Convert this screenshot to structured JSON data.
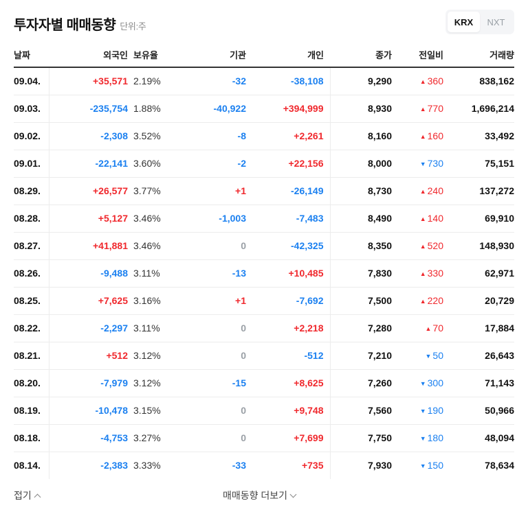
{
  "header": {
    "title": "투자자별 매매동향",
    "unit": "단위:주",
    "market_tabs": [
      {
        "label": "KRX",
        "active": true
      },
      {
        "label": "NXT",
        "active": false
      }
    ]
  },
  "table": {
    "columns": [
      "날짜",
      "외국인",
      "보유율",
      "기관",
      "개인",
      "종가",
      "전일비",
      "거래량"
    ],
    "rows": [
      {
        "date": "09.04.",
        "foreign": "+35,571",
        "foreign_dir": "up",
        "holding": "2.19%",
        "inst": "-32",
        "inst_dir": "down",
        "indiv": "-38,108",
        "indiv_dir": "down",
        "close": "9,290",
        "change": "360",
        "change_dir": "up",
        "volume": "838,162"
      },
      {
        "date": "09.03.",
        "foreign": "-235,754",
        "foreign_dir": "down",
        "holding": "1.88%",
        "inst": "-40,922",
        "inst_dir": "down",
        "indiv": "+394,999",
        "indiv_dir": "up",
        "close": "8,930",
        "change": "770",
        "change_dir": "up",
        "volume": "1,696,214"
      },
      {
        "date": "09.02.",
        "foreign": "-2,308",
        "foreign_dir": "down",
        "holding": "3.52%",
        "inst": "-8",
        "inst_dir": "down",
        "indiv": "+2,261",
        "indiv_dir": "up",
        "close": "8,160",
        "change": "160",
        "change_dir": "up",
        "volume": "33,492"
      },
      {
        "date": "09.01.",
        "foreign": "-22,141",
        "foreign_dir": "down",
        "holding": "3.60%",
        "inst": "-2",
        "inst_dir": "down",
        "indiv": "+22,156",
        "indiv_dir": "up",
        "close": "8,000",
        "change": "730",
        "change_dir": "down",
        "volume": "75,151"
      },
      {
        "date": "08.29.",
        "foreign": "+26,577",
        "foreign_dir": "up",
        "holding": "3.77%",
        "inst": "+1",
        "inst_dir": "up",
        "indiv": "-26,149",
        "indiv_dir": "down",
        "close": "8,730",
        "change": "240",
        "change_dir": "up",
        "volume": "137,272"
      },
      {
        "date": "08.28.",
        "foreign": "+5,127",
        "foreign_dir": "up",
        "holding": "3.46%",
        "inst": "-1,003",
        "inst_dir": "down",
        "indiv": "-7,483",
        "indiv_dir": "down",
        "close": "8,490",
        "change": "140",
        "change_dir": "up",
        "volume": "69,910"
      },
      {
        "date": "08.27.",
        "foreign": "+41,881",
        "foreign_dir": "up",
        "holding": "3.46%",
        "inst": "0",
        "inst_dir": "zero",
        "indiv": "-42,325",
        "indiv_dir": "down",
        "close": "8,350",
        "change": "520",
        "change_dir": "up",
        "volume": "148,930"
      },
      {
        "date": "08.26.",
        "foreign": "-9,488",
        "foreign_dir": "down",
        "holding": "3.11%",
        "inst": "-13",
        "inst_dir": "down",
        "indiv": "+10,485",
        "indiv_dir": "up",
        "close": "7,830",
        "change": "330",
        "change_dir": "up",
        "volume": "62,971"
      },
      {
        "date": "08.25.",
        "foreign": "+7,625",
        "foreign_dir": "up",
        "holding": "3.16%",
        "inst": "+1",
        "inst_dir": "up",
        "indiv": "-7,692",
        "indiv_dir": "down",
        "close": "7,500",
        "change": "220",
        "change_dir": "up",
        "volume": "20,729"
      },
      {
        "date": "08.22.",
        "foreign": "-2,297",
        "foreign_dir": "down",
        "holding": "3.11%",
        "inst": "0",
        "inst_dir": "zero",
        "indiv": "+2,218",
        "indiv_dir": "up",
        "close": "7,280",
        "change": "70",
        "change_dir": "up",
        "volume": "17,884"
      },
      {
        "date": "08.21.",
        "foreign": "+512",
        "foreign_dir": "up",
        "holding": "3.12%",
        "inst": "0",
        "inst_dir": "zero",
        "indiv": "-512",
        "indiv_dir": "down",
        "close": "7,210",
        "change": "50",
        "change_dir": "down",
        "volume": "26,643"
      },
      {
        "date": "08.20.",
        "foreign": "-7,979",
        "foreign_dir": "down",
        "holding": "3.12%",
        "inst": "-15",
        "inst_dir": "down",
        "indiv": "+8,625",
        "indiv_dir": "up",
        "close": "7,260",
        "change": "300",
        "change_dir": "down",
        "volume": "71,143"
      },
      {
        "date": "08.19.",
        "foreign": "-10,478",
        "foreign_dir": "down",
        "holding": "3.15%",
        "inst": "0",
        "inst_dir": "zero",
        "indiv": "+9,748",
        "indiv_dir": "up",
        "close": "7,560",
        "change": "190",
        "change_dir": "down",
        "volume": "50,966"
      },
      {
        "date": "08.18.",
        "foreign": "-4,753",
        "foreign_dir": "down",
        "holding": "3.27%",
        "inst": "0",
        "inst_dir": "zero",
        "indiv": "+7,699",
        "indiv_dir": "up",
        "close": "7,750",
        "change": "180",
        "change_dir": "down",
        "volume": "48,094"
      },
      {
        "date": "08.14.",
        "foreign": "-2,383",
        "foreign_dir": "down",
        "holding": "3.33%",
        "inst": "-33",
        "inst_dir": "down",
        "indiv": "+735",
        "indiv_dir": "up",
        "close": "7,930",
        "change": "150",
        "change_dir": "down",
        "volume": "78,634"
      }
    ]
  },
  "colors": {
    "up": "#f0282d",
    "down": "#1b80f0",
    "zero": "#9aa0a6"
  },
  "icons": {
    "up": "▲",
    "down": "▼"
  },
  "footer": {
    "fold_label": "접기",
    "more_label": "매매동향 더보기"
  }
}
